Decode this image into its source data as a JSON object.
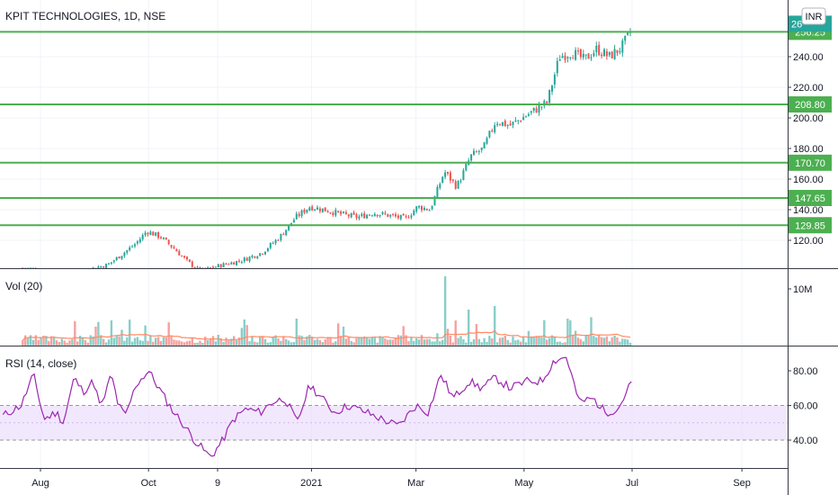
{
  "header": {
    "symbol_title": "KPIT TECHNOLOGIES, 1D, NSE",
    "currency": "INR"
  },
  "colors": {
    "up": "#26a69a",
    "down": "#ef5350",
    "level": "#4caf50",
    "rsi": "#9c27b0",
    "vol_ma": "#ff8a65",
    "rsi_band": "#e9d8fb"
  },
  "chart_data": [
    {
      "type": "candlestick",
      "title": "KPIT TECHNOLOGIES, 1D, NSE",
      "x_tick_labels": [
        "Aug",
        "Oct",
        "9",
        "2021",
        "Mar",
        "May",
        "Jul",
        "Sep"
      ],
      "y_tick_labels": [
        "120.00",
        "140.00",
        "160.00",
        "180.00",
        "200.00",
        "220.00",
        "240.00"
      ],
      "ylim": [
        105,
        262
      ],
      "horizontal_levels": [
        {
          "value": 256.25,
          "label": "256.25"
        },
        {
          "value": 208.8,
          "label": "208.80"
        },
        {
          "value": 170.7,
          "label": "170.70"
        },
        {
          "value": 147.65,
          "label": "147.65"
        },
        {
          "value": 129.85,
          "label": "129.85"
        }
      ],
      "last_price_label": "26",
      "close_series": [
        {
          "d": "2020-07-22",
          "c": 102
        },
        {
          "d": "2020-08-05",
          "c": 100
        },
        {
          "d": "2020-08-20",
          "c": 99
        },
        {
          "d": "2020-09-08",
          "c": 104
        },
        {
          "d": "2020-09-15",
          "c": 110
        },
        {
          "d": "2020-09-24",
          "c": 118
        },
        {
          "d": "2020-09-30",
          "c": 126
        },
        {
          "d": "2020-10-08",
          "c": 122
        },
        {
          "d": "2020-10-16",
          "c": 114
        },
        {
          "d": "2020-10-23",
          "c": 106
        },
        {
          "d": "2020-10-30",
          "c": 100
        },
        {
          "d": "2020-11-12",
          "c": 104
        },
        {
          "d": "2020-11-23",
          "c": 107
        },
        {
          "d": "2020-12-04",
          "c": 112
        },
        {
          "d": "2020-12-14",
          "c": 122
        },
        {
          "d": "2020-12-23",
          "c": 135
        },
        {
          "d": "2020-12-31",
          "c": 142
        },
        {
          "d": "2021-01-08",
          "c": 140
        },
        {
          "d": "2021-01-18",
          "c": 137
        },
        {
          "d": "2021-01-27",
          "c": 135
        },
        {
          "d": "2021-02-05",
          "c": 138
        },
        {
          "d": "2021-02-15",
          "c": 136
        },
        {
          "d": "2021-02-23",
          "c": 134
        },
        {
          "d": "2021-03-02",
          "c": 142
        },
        {
          "d": "2021-03-09",
          "c": 140
        },
        {
          "d": "2021-03-17",
          "c": 165
        },
        {
          "d": "2021-03-24",
          "c": 155
        },
        {
          "d": "2021-04-01",
          "c": 175
        },
        {
          "d": "2021-04-08",
          "c": 180
        },
        {
          "d": "2021-04-15",
          "c": 198
        },
        {
          "d": "2021-04-23",
          "c": 195
        },
        {
          "d": "2021-04-30",
          "c": 200
        },
        {
          "d": "2021-05-07",
          "c": 205
        },
        {
          "d": "2021-05-14",
          "c": 210
        },
        {
          "d": "2021-05-21",
          "c": 240
        },
        {
          "d": "2021-05-28",
          "c": 243
        },
        {
          "d": "2021-06-04",
          "c": 238
        },
        {
          "d": "2021-06-11",
          "c": 245
        },
        {
          "d": "2021-06-18",
          "c": 240
        },
        {
          "d": "2021-06-25",
          "c": 246
        },
        {
          "d": "2021-07-01",
          "c": 258
        }
      ]
    },
    {
      "type": "bar",
      "title": "Vol (20)",
      "y_tick_labels": [
        "10M"
      ]
    },
    {
      "type": "line",
      "title": "RSI (14, close)",
      "y_tick_labels": [
        "40.00",
        "60.00",
        "80.00"
      ],
      "ylim": [
        27,
        92
      ],
      "band": [
        40,
        60
      ],
      "values": [
        {
          "d": "2020-07-22",
          "v": 62
        },
        {
          "d": "2020-07-28",
          "v": 78
        },
        {
          "d": "2020-08-03",
          "v": 52
        },
        {
          "d": "2020-08-10",
          "v": 56
        },
        {
          "d": "2020-08-14",
          "v": 50
        },
        {
          "d": "2020-08-20",
          "v": 76
        },
        {
          "d": "2020-08-25",
          "v": 68
        },
        {
          "d": "2020-08-31",
          "v": 74
        },
        {
          "d": "2020-09-04",
          "v": 58
        },
        {
          "d": "2020-09-10",
          "v": 78
        },
        {
          "d": "2020-09-14",
          "v": 60
        },
        {
          "d": "2020-09-18",
          "v": 54
        },
        {
          "d": "2020-09-24",
          "v": 72
        },
        {
          "d": "2020-10-01",
          "v": 80
        },
        {
          "d": "2020-10-08",
          "v": 68
        },
        {
          "d": "2020-10-14",
          "v": 58
        },
        {
          "d": "2020-10-20",
          "v": 50
        },
        {
          "d": "2020-10-27",
          "v": 40
        },
        {
          "d": "2020-11-05",
          "v": 30
        },
        {
          "d": "2020-11-12",
          "v": 40
        },
        {
          "d": "2020-11-18",
          "v": 52
        },
        {
          "d": "2020-11-25",
          "v": 58
        },
        {
          "d": "2020-12-03",
          "v": 56
        },
        {
          "d": "2020-12-10",
          "v": 62
        },
        {
          "d": "2020-12-17",
          "v": 64
        },
        {
          "d": "2020-12-24",
          "v": 50
        },
        {
          "d": "2020-12-31",
          "v": 72
        },
        {
          "d": "2021-01-07",
          "v": 64
        },
        {
          "d": "2021-01-14",
          "v": 56
        },
        {
          "d": "2021-01-22",
          "v": 60
        },
        {
          "d": "2021-02-01",
          "v": 56
        },
        {
          "d": "2021-02-10",
          "v": 52
        },
        {
          "d": "2021-02-19",
          "v": 48
        },
        {
          "d": "2021-03-01",
          "v": 60
        },
        {
          "d": "2021-03-08",
          "v": 56
        },
        {
          "d": "2021-03-15",
          "v": 78
        },
        {
          "d": "2021-03-22",
          "v": 64
        },
        {
          "d": "2021-03-31",
          "v": 74
        },
        {
          "d": "2021-04-07",
          "v": 70
        },
        {
          "d": "2021-04-15",
          "v": 76
        },
        {
          "d": "2021-04-23",
          "v": 70
        },
        {
          "d": "2021-05-03",
          "v": 74
        },
        {
          "d": "2021-05-11",
          "v": 74
        },
        {
          "d": "2021-05-18",
          "v": 86
        },
        {
          "d": "2021-05-25",
          "v": 88
        },
        {
          "d": "2021-06-01",
          "v": 62
        },
        {
          "d": "2021-06-09",
          "v": 64
        },
        {
          "d": "2021-06-16",
          "v": 56
        },
        {
          "d": "2021-06-23",
          "v": 58
        },
        {
          "d": "2021-07-01",
          "v": 74
        }
      ]
    }
  ]
}
